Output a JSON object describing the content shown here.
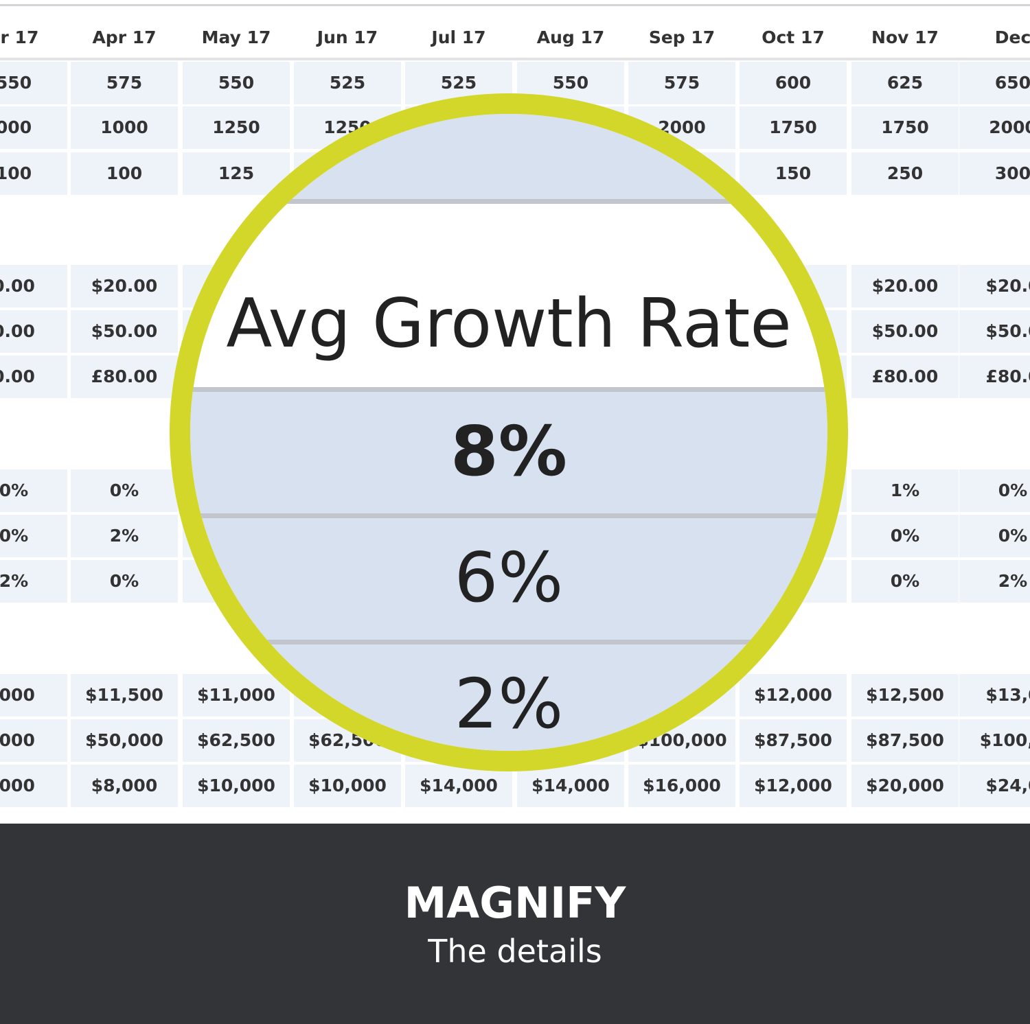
{
  "table": {
    "columns": [
      "ar 17",
      "Apr 17",
      "May 17",
      "Jun 17",
      "Jul 17",
      "Aug 17",
      "Sep 17",
      "Oct 17",
      "Nov 17",
      "Dec"
    ],
    "groups": [
      {
        "rows": [
          [
            "550",
            "575",
            "550",
            "525",
            "525",
            "550",
            "575",
            "600",
            "625",
            "650"
          ],
          [
            "000",
            "1000",
            "1250",
            "1250",
            "",
            "",
            "2000",
            "1750",
            "1750",
            "2000"
          ],
          [
            "100",
            "100",
            "125",
            "",
            "",
            "",
            "",
            "150",
            "250",
            "300"
          ]
        ]
      },
      {
        "rows": [
          [
            "0.00",
            "$20.00",
            "",
            "",
            "",
            "",
            "",
            "",
            "$20.00",
            "$20.0"
          ],
          [
            "0.00",
            "$50.00",
            "",
            "",
            "",
            "",
            "",
            "",
            "$50.00",
            "$50.0"
          ],
          [
            "0.00",
            "£80.00",
            "",
            "",
            "",
            "",
            "",
            "",
            "£80.00",
            "£80.0"
          ]
        ]
      },
      {
        "rows": [
          [
            "0%",
            "0%",
            "",
            "",
            "",
            "",
            "",
            "",
            "1%",
            "0%"
          ],
          [
            "0%",
            "2%",
            "",
            "",
            "",
            "",
            "",
            "",
            "0%",
            "0%"
          ],
          [
            "2%",
            "0%",
            "",
            "",
            "",
            "",
            "",
            "",
            "0%",
            "2%"
          ]
        ]
      },
      {
        "rows": [
          [
            ",000",
            "$11,500",
            "$11,000",
            "",
            "",
            "",
            "",
            "$12,000",
            "$12,500",
            "$13,0"
          ],
          [
            ",000",
            "$50,000",
            "$62,500",
            "$62,500",
            "",
            "",
            "$100,000",
            "$87,500",
            "$87,500",
            "$100,0"
          ],
          [
            ",000",
            "$8,000",
            "$10,000",
            "$10,000",
            "$14,000",
            "$14,000",
            "$16,000",
            "$12,000",
            "$20,000",
            "$24,0"
          ]
        ]
      }
    ]
  },
  "magnifier": {
    "title": "Avg Growth Rate",
    "values": [
      "8%",
      "6%",
      "2%"
    ]
  },
  "banner": {
    "title": "MAGNIFY",
    "subtitle": "The details"
  },
  "colors": {
    "lens_ring": "#d2d72a",
    "cell_bg": "#eef3fa",
    "band_bg": "#d7e1ef",
    "banner_bg": "#333438"
  }
}
